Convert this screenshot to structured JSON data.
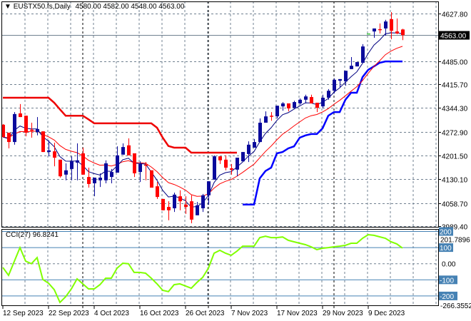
{
  "header": {
    "symbol": "EUSTX50.fs,Daily",
    "ohlc": "4580.00 4582.00 4548.00 4563.00"
  },
  "colors": {
    "bull": "#0a0a9c",
    "bear": "#ff0000",
    "doji": "#3cc83c",
    "ema_fast": "#000080",
    "ema_slow": "#ff0000",
    "upper_band": "#ee0000",
    "lower_band": "#0000ff",
    "cci": "#80ff00",
    "level": "#4682b4",
    "grid": "#708090"
  },
  "chart_data": [
    {
      "type": "candlestick",
      "title": "EUSTX50.fs,Daily",
      "current_price": 4563.0,
      "current_price_label": "4563.00",
      "ylim": [
        3989.4,
        4627.8
      ],
      "y_ticks": [
        "4627.80",
        "4485.00",
        "4415.70",
        "4344.30",
        "4272.90",
        "4201.50",
        "4130.10",
        "4058.70",
        "3989.40"
      ],
      "y_tick_values": [
        4627.8,
        4485.0,
        4415.7,
        4344.3,
        4272.9,
        4201.5,
        4130.1,
        4058.7,
        3989.4
      ],
      "x_labels": [
        "12 Sep 2023",
        "22 Sep 2023",
        "4 Oct 2023",
        "16 Oct 2023",
        "26 Oct 2023",
        "7 Nov 2023",
        "17 Nov 2023",
        "29 Nov 2023",
        "9 Dec 2023"
      ],
      "x_label_bar_index": [
        0,
        8,
        16,
        24,
        32,
        40,
        48,
        56,
        64
      ],
      "period_separator_bar_index": [
        14,
        36,
        58
      ],
      "candles_ohlc": [
        [
          4294,
          4296,
          4255,
          4257
        ],
        [
          4270,
          4270,
          4223,
          4242
        ],
        [
          4242,
          4332,
          4234,
          4326
        ],
        [
          4328,
          4356,
          4317,
          4317
        ],
        [
          4321,
          4321,
          4259,
          4270
        ],
        [
          4279,
          4300,
          4255,
          4277
        ],
        [
          4272,
          4317,
          4262,
          4281
        ],
        [
          4274,
          4274,
          4212,
          4212
        ],
        [
          4212,
          4247,
          4199,
          4217
        ],
        [
          4214,
          4240,
          4169,
          4195
        ],
        [
          4189,
          4189,
          4135,
          4139
        ],
        [
          4144,
          4178,
          4127,
          4157
        ],
        [
          4161,
          4199,
          4127,
          4184
        ],
        [
          4180,
          4238,
          4127,
          4187
        ],
        [
          4208,
          4225,
          4144,
          4144
        ],
        [
          4137,
          4165,
          4105,
          4116
        ],
        [
          4118,
          4135,
          4079,
          4135
        ],
        [
          4127,
          4148,
          4107,
          4135
        ],
        [
          4127,
          4187,
          4118,
          4178
        ],
        [
          4137,
          4161,
          4118,
          4152
        ],
        [
          4150,
          4229,
          4150,
          4202
        ],
        [
          4204,
          4238,
          4204,
          4227
        ],
        [
          4232,
          4253,
          4202,
          4202
        ],
        [
          4208,
          4208,
          4137,
          4148
        ],
        [
          4152,
          4184,
          4122,
          4176
        ],
        [
          4174,
          4182,
          4127,
          4172
        ],
        [
          4157,
          4157,
          4105,
          4105
        ],
        [
          4109,
          4122,
          4071,
          4077
        ],
        [
          4071,
          4071,
          4037,
          4037
        ],
        [
          4047,
          4064,
          4007,
          4037
        ],
        [
          4043,
          4090,
          4032,
          4084
        ],
        [
          4079,
          4097,
          4037,
          4064
        ],
        [
          4054,
          4079,
          4026,
          4047
        ],
        [
          4064,
          4082,
          3998,
          4009
        ],
        [
          4022,
          4062,
          4022,
          4052
        ],
        [
          4043,
          4086,
          4032,
          4082
        ],
        [
          4082,
          4124,
          4054,
          4124
        ],
        [
          4129,
          4202,
          4129,
          4199
        ],
        [
          4199,
          4199,
          4176,
          4187
        ],
        [
          4189,
          4202,
          4157,
          4165
        ],
        [
          4163,
          4176,
          4144,
          4159
        ],
        [
          4159,
          4195,
          4139,
          4195
        ],
        [
          4184,
          4212,
          4184,
          4212
        ],
        [
          4206,
          4244,
          4182,
          4234
        ],
        [
          4225,
          4251,
          4225,
          4242
        ],
        [
          4242,
          4313,
          4242,
          4300
        ],
        [
          4300,
          4334,
          4300,
          4319
        ],
        [
          4321,
          4332,
          4306,
          4319
        ],
        [
          4319,
          4351,
          4313,
          4351
        ],
        [
          4349,
          4362,
          4336,
          4358
        ],
        [
          4358,
          4358,
          4334,
          4343
        ],
        [
          4345,
          4366,
          4341,
          4362
        ],
        [
          4358,
          4373,
          4354,
          4369
        ],
        [
          4369,
          4384,
          4358,
          4379
        ],
        [
          4377,
          4384,
          4358,
          4358
        ],
        [
          4360,
          4360,
          4332,
          4345
        ],
        [
          4349,
          4384,
          4343,
          4375
        ],
        [
          4375,
          4401,
          4369,
          4396
        ],
        [
          4396,
          4433,
          4388,
          4429
        ],
        [
          4426,
          4431,
          4405,
          4431
        ],
        [
          4424,
          4456,
          4411,
          4456
        ],
        [
          4461,
          4497,
          4461,
          4471
        ],
        [
          4469,
          4482,
          4469,
          4482
        ],
        [
          4480,
          4536,
          4480,
          4529
        ],
        [
          4568,
          4568,
          4568,
          4568
        ],
        [
          4574,
          4583,
          4555,
          4583
        ],
        [
          4581,
          4598,
          4568,
          4579
        ],
        [
          4583,
          4609,
          4561,
          4604
        ],
        [
          4611,
          4632,
          4551,
          4576
        ],
        [
          4574,
          4613,
          4566,
          4568
        ],
        [
          4580,
          4582,
          4548,
          4563
        ]
      ],
      "ema_fast_period": 5,
      "ema_slow_period": 12,
      "upper_band_start_index": 0,
      "upper_band": [
        4375,
        4375,
        4375,
        4375,
        4375,
        4375,
        4375,
        4375,
        4375,
        4360,
        4340,
        4321,
        4321,
        4321,
        4321,
        4310,
        4298,
        4298,
        4298,
        4298,
        4298,
        4298,
        4298,
        4298,
        4298,
        4298,
        4298,
        4285,
        4255,
        4230,
        4225,
        4225,
        4225,
        4210,
        4210,
        4210,
        4210,
        4210,
        4210,
        4210,
        4210,
        4210
      ],
      "lower_band_start_index": 42,
      "lower_band": [
        4054,
        4054,
        4054,
        4133,
        4155,
        4165,
        4208,
        4212,
        4223,
        4229,
        4255,
        4262,
        4266,
        4266,
        4283,
        4321,
        4332,
        4332,
        4369,
        4390,
        4390,
        4437,
        4459,
        4469,
        4480,
        4484,
        4484,
        4484,
        4484
      ]
    },
    {
      "type": "line",
      "title": "CCI(27)",
      "label": "CCI(27) 96.8241",
      "ylim": [
        -266.3552,
        201.7896
      ],
      "max_label": "201.7896",
      "min_label": "-266.3552",
      "levels": [
        {
          "value": 200,
          "label": "200"
        },
        {
          "value": 100,
          "label": "100"
        },
        {
          "value": -100,
          "label": "-100"
        },
        {
          "value": -200,
          "label": "-200"
        }
      ],
      "zero_label": "0.00",
      "values": [
        -23,
        -72,
        14,
        100,
        16,
        0,
        38,
        -98,
        -121,
        -161,
        -240,
        -205,
        -156,
        -94,
        -125,
        -156,
        -156,
        -130,
        -90,
        -90,
        -28,
        3,
        0,
        -54,
        -54,
        -59,
        -90,
        -125,
        -165,
        -173,
        -130,
        -125,
        -138,
        -152,
        -116,
        -85,
        -28,
        65,
        83,
        65,
        52,
        78,
        109,
        109,
        109,
        162,
        171,
        162,
        162,
        166,
        145,
        136,
        127,
        118,
        105,
        87,
        96,
        100,
        105,
        109,
        114,
        127,
        127,
        158,
        180,
        176,
        167,
        158,
        136,
        123,
        96.8
      ]
    }
  ]
}
